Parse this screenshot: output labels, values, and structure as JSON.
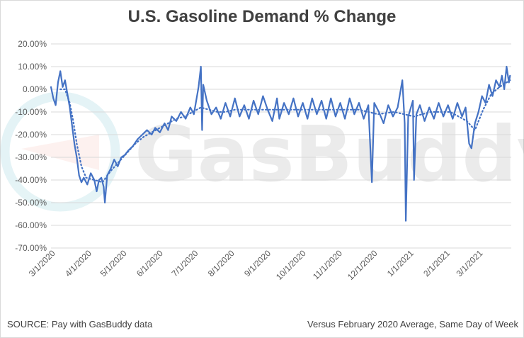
{
  "page": {
    "source_note": "SOURCE: Pay with GasBuddy data",
    "baseline_note": "Versus February 2020 Average, Same Day of Week"
  },
  "watermark": {
    "text": "GasBuddy",
    "icon": "gasbuddy-logo-icon"
  },
  "colors": {
    "series": "#4472C4",
    "grid": "#d9d9d9",
    "text": "#595959",
    "title": "#404040"
  },
  "chart_data": {
    "type": "line",
    "title": "U.S. Gasoline Demand % Change",
    "xlabel": "",
    "ylabel": "",
    "y_ticks": [
      "20.00%",
      "10.00%",
      "0.00%",
      "-10.00%",
      "-20.00%",
      "-30.00%",
      "-40.00%",
      "-50.00%",
      "-60.00%",
      "-70.00%"
    ],
    "y_tick_values": [
      20,
      10,
      0,
      -10,
      -20,
      -30,
      -40,
      -50,
      -60,
      -70
    ],
    "ylim": [
      -70,
      20
    ],
    "x_ticks": [
      "3/1/2020",
      "4/1/2020",
      "5/1/2020",
      "6/1/2020",
      "7/1/2020",
      "8/1/2020",
      "9/1/2020",
      "10/1/2020",
      "11/1/2020",
      "12/1/2020",
      "1/1/2021",
      "2/1/2021",
      "3/1/2021"
    ],
    "x_range": [
      "2020-02-26",
      "2021-03-25"
    ],
    "grid": true,
    "legend": "none",
    "series": [
      {
        "style": "solid",
        "points": [
          [
            "2020-02-26",
            1
          ],
          [
            "2020-02-28",
            -4
          ],
          [
            "2020-03-01",
            -7
          ],
          [
            "2020-03-03",
            3
          ],
          [
            "2020-03-05",
            8
          ],
          [
            "2020-03-07",
            1
          ],
          [
            "2020-03-09",
            4
          ],
          [
            "2020-03-11",
            -2
          ],
          [
            "2020-03-13",
            -8
          ],
          [
            "2020-03-15",
            -16
          ],
          [
            "2020-03-17",
            -24
          ],
          [
            "2020-03-19",
            -30
          ],
          [
            "2020-03-21",
            -38
          ],
          [
            "2020-03-23",
            -41
          ],
          [
            "2020-03-25",
            -39
          ],
          [
            "2020-03-28",
            -42
          ],
          [
            "2020-03-31",
            -37
          ],
          [
            "2020-04-03",
            -40
          ],
          [
            "2020-04-05",
            -45
          ],
          [
            "2020-04-07",
            -40
          ],
          [
            "2020-04-09",
            -39
          ],
          [
            "2020-04-11",
            -43
          ],
          [
            "2020-04-12",
            -50
          ],
          [
            "2020-04-14",
            -38
          ],
          [
            "2020-04-17",
            -35
          ],
          [
            "2020-04-20",
            -31
          ],
          [
            "2020-04-23",
            -34
          ],
          [
            "2020-04-26",
            -30
          ],
          [
            "2020-04-29",
            -29
          ],
          [
            "2020-05-02",
            -27
          ],
          [
            "2020-05-06",
            -25
          ],
          [
            "2020-05-10",
            -22
          ],
          [
            "2020-05-14",
            -20
          ],
          [
            "2020-05-18",
            -18
          ],
          [
            "2020-05-22",
            -20
          ],
          [
            "2020-05-25",
            -17
          ],
          [
            "2020-05-29",
            -19
          ],
          [
            "2020-06-02",
            -15
          ],
          [
            "2020-06-05",
            -18
          ],
          [
            "2020-06-08",
            -12
          ],
          [
            "2020-06-12",
            -14
          ],
          [
            "2020-06-16",
            -10
          ],
          [
            "2020-06-20",
            -13
          ],
          [
            "2020-06-24",
            -8
          ],
          [
            "2020-06-27",
            -11
          ],
          [
            "2020-07-01",
            1
          ],
          [
            "2020-07-03",
            10
          ],
          [
            "2020-07-04",
            -18
          ],
          [
            "2020-07-05",
            2
          ],
          [
            "2020-07-08",
            -5
          ],
          [
            "2020-07-12",
            -11
          ],
          [
            "2020-07-16",
            -8
          ],
          [
            "2020-07-20",
            -13
          ],
          [
            "2020-07-24",
            -6
          ],
          [
            "2020-07-28",
            -12
          ],
          [
            "2020-08-01",
            -4
          ],
          [
            "2020-08-05",
            -12
          ],
          [
            "2020-08-09",
            -7
          ],
          [
            "2020-08-13",
            -13
          ],
          [
            "2020-08-17",
            -5
          ],
          [
            "2020-08-21",
            -11
          ],
          [
            "2020-08-25",
            -3
          ],
          [
            "2020-08-29",
            -9
          ],
          [
            "2020-09-02",
            -14
          ],
          [
            "2020-09-06",
            -4
          ],
          [
            "2020-09-08",
            -13
          ],
          [
            "2020-09-12",
            -6
          ],
          [
            "2020-09-16",
            -11
          ],
          [
            "2020-09-20",
            -4
          ],
          [
            "2020-09-24",
            -12
          ],
          [
            "2020-09-28",
            -6
          ],
          [
            "2020-10-02",
            -13
          ],
          [
            "2020-10-06",
            -4
          ],
          [
            "2020-10-10",
            -11
          ],
          [
            "2020-10-14",
            -5
          ],
          [
            "2020-10-18",
            -13
          ],
          [
            "2020-10-22",
            -4
          ],
          [
            "2020-10-26",
            -12
          ],
          [
            "2020-10-30",
            -6
          ],
          [
            "2020-11-03",
            -13
          ],
          [
            "2020-11-07",
            -4
          ],
          [
            "2020-11-11",
            -11
          ],
          [
            "2020-11-15",
            -6
          ],
          [
            "2020-11-19",
            -13
          ],
          [
            "2020-11-23",
            -7
          ],
          [
            "2020-11-26",
            -41
          ],
          [
            "2020-11-28",
            -6
          ],
          [
            "2020-12-02",
            -10
          ],
          [
            "2020-12-06",
            -15
          ],
          [
            "2020-12-10",
            -7
          ],
          [
            "2020-12-14",
            -12
          ],
          [
            "2020-12-18",
            -8
          ],
          [
            "2020-12-22",
            4
          ],
          [
            "2020-12-24",
            -15
          ],
          [
            "2020-12-25",
            -58
          ],
          [
            "2020-12-27",
            -12
          ],
          [
            "2020-12-31",
            -5
          ],
          [
            "2021-01-01",
            -40
          ],
          [
            "2021-01-03",
            -11
          ],
          [
            "2021-01-06",
            -7
          ],
          [
            "2021-01-10",
            -14
          ],
          [
            "2021-01-14",
            -8
          ],
          [
            "2021-01-18",
            -13
          ],
          [
            "2021-01-22",
            -6
          ],
          [
            "2021-01-26",
            -12
          ],
          [
            "2021-01-30",
            -7
          ],
          [
            "2021-02-03",
            -13
          ],
          [
            "2021-02-07",
            -6
          ],
          [
            "2021-02-11",
            -12
          ],
          [
            "2021-02-14",
            -8
          ],
          [
            "2021-02-17",
            -24
          ],
          [
            "2021-02-19",
            -26
          ],
          [
            "2021-02-22",
            -15
          ],
          [
            "2021-02-25",
            -10
          ],
          [
            "2021-02-28",
            -3
          ],
          [
            "2021-03-03",
            -6
          ],
          [
            "2021-03-06",
            2
          ],
          [
            "2021-03-09",
            -3
          ],
          [
            "2021-03-12",
            4
          ],
          [
            "2021-03-15",
            1
          ],
          [
            "2021-03-17",
            6
          ],
          [
            "2021-03-19",
            0
          ],
          [
            "2021-03-21",
            10
          ],
          [
            "2021-03-23",
            3
          ],
          [
            "2021-03-24",
            6
          ]
        ]
      },
      {
        "style": "dotted",
        "points": [
          [
            "2020-03-05",
            0
          ],
          [
            "2020-03-09",
            0
          ],
          [
            "2020-03-13",
            -6
          ],
          [
            "2020-03-16",
            -14
          ],
          [
            "2020-03-19",
            -24
          ],
          [
            "2020-03-23",
            -34
          ],
          [
            "2020-03-27",
            -39
          ],
          [
            "2020-04-03",
            -40
          ],
          [
            "2020-04-10",
            -41
          ],
          [
            "2020-04-17",
            -36
          ],
          [
            "2020-04-24",
            -32
          ],
          [
            "2020-05-01",
            -28
          ],
          [
            "2020-05-08",
            -24
          ],
          [
            "2020-05-15",
            -21
          ],
          [
            "2020-05-22",
            -19
          ],
          [
            "2020-05-29",
            -17
          ],
          [
            "2020-06-05",
            -15
          ],
          [
            "2020-06-12",
            -13
          ],
          [
            "2020-06-19",
            -12
          ],
          [
            "2020-06-26",
            -10
          ],
          [
            "2020-07-03",
            -8
          ],
          [
            "2020-07-10",
            -9
          ],
          [
            "2020-07-17",
            -10
          ],
          [
            "2020-07-24",
            -10
          ],
          [
            "2020-08-01",
            -9
          ],
          [
            "2020-08-15",
            -9
          ],
          [
            "2020-09-01",
            -9
          ],
          [
            "2020-09-15",
            -9
          ],
          [
            "2020-10-01",
            -9
          ],
          [
            "2020-10-15",
            -9
          ],
          [
            "2020-11-01",
            -9
          ],
          [
            "2020-11-15",
            -9
          ],
          [
            "2020-12-01",
            -11
          ],
          [
            "2020-12-15",
            -10
          ],
          [
            "2021-01-01",
            -12
          ],
          [
            "2021-01-15",
            -10
          ],
          [
            "2021-02-01",
            -10
          ],
          [
            "2021-02-15",
            -14
          ],
          [
            "2021-02-22",
            -18
          ],
          [
            "2021-03-01",
            -9
          ],
          [
            "2021-03-08",
            -2
          ],
          [
            "2021-03-15",
            1
          ],
          [
            "2021-03-24",
            4
          ]
        ]
      }
    ]
  }
}
